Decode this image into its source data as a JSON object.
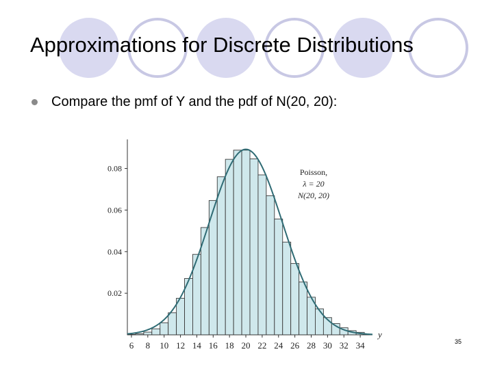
{
  "slide": {
    "title": "Approximations for Discrete Distributions",
    "bullet": "Compare the pmf of Y and the pdf of N(20, 20):",
    "page_number": "35"
  },
  "colors": {
    "circle_fill": "#d9d9f0",
    "circle_ring": "#c8c8e4",
    "bar_fill": "#cfe8ec",
    "bar_stroke": "#3a3a3a",
    "curve": "#2e6b74",
    "axis": "#333333"
  },
  "chart_data": {
    "type": "bar",
    "title": "",
    "xlabel": "y",
    "ylabel": "",
    "xlim": [
      5.5,
      35.5
    ],
    "ylim": [
      0,
      0.092
    ],
    "xticks": [
      6,
      8,
      10,
      12,
      14,
      16,
      18,
      20,
      22,
      24,
      26,
      28,
      30,
      32,
      34
    ],
    "yticks": [
      0.02,
      0.04,
      0.06,
      0.08
    ],
    "x": [
      6,
      7,
      8,
      9,
      10,
      11,
      12,
      13,
      14,
      15,
      16,
      17,
      18,
      19,
      20,
      21,
      22,
      23,
      24,
      25,
      26,
      27,
      28,
      29,
      30,
      31,
      32,
      33,
      34
    ],
    "series": [
      {
        "name": "Poisson, λ = 20",
        "values": [
          0.0002,
          0.0005,
          0.0013,
          0.0029,
          0.0058,
          0.0106,
          0.0176,
          0.0271,
          0.0387,
          0.0516,
          0.0646,
          0.076,
          0.0844,
          0.0888,
          0.0888,
          0.0846,
          0.0769,
          0.0669,
          0.0557,
          0.0446,
          0.0343,
          0.0254,
          0.0181,
          0.0125,
          0.0083,
          0.0054,
          0.0034,
          0.002,
          0.0012
        ]
      },
      {
        "name": "N(20, 20)",
        "mean": 20,
        "variance": 20
      }
    ],
    "annotations": [
      "Poisson,",
      "λ = 20",
      "N(20, 20)"
    ]
  }
}
